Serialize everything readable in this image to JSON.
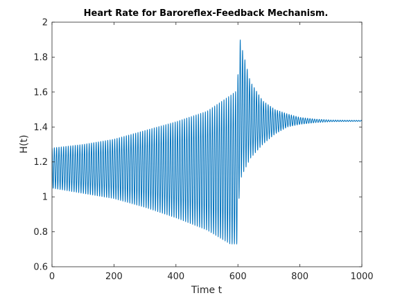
{
  "chart_data": {
    "type": "line",
    "title": "Heart Rate for Baroreflex-Feedback Mechanism.",
    "xlabel": "Time t",
    "ylabel": "H(t)",
    "xlim": [
      0,
      1000
    ],
    "ylim": [
      0.6,
      2
    ],
    "xticks": [
      0,
      200,
      400,
      600,
      800,
      1000
    ],
    "yticks": [
      0.6,
      0.8,
      1,
      1.2,
      1.4,
      1.6,
      1.8,
      2
    ],
    "xtick_labels": [
      "0",
      "200",
      "400",
      "600",
      "800",
      "1000"
    ],
    "ytick_labels": [
      "0.6",
      "0.8",
      "1",
      "1.2",
      "1.4",
      "1.6",
      "1.8",
      "2"
    ],
    "grid": false,
    "line_color": "#0072BD",
    "series": [
      {
        "oscillation_period": 7.5,
        "envelope": [
          {
            "t": 0,
            "min": 1.05,
            "max": 1.28
          },
          {
            "t": 100,
            "min": 1.02,
            "max": 1.3
          },
          {
            "t": 200,
            "min": 0.99,
            "max": 1.33
          },
          {
            "t": 300,
            "min": 0.94,
            "max": 1.38
          },
          {
            "t": 400,
            "min": 0.88,
            "max": 1.43
          },
          {
            "t": 500,
            "min": 0.81,
            "max": 1.49
          },
          {
            "t": 575,
            "min": 0.73,
            "max": 1.58
          },
          {
            "t": 598,
            "min": 0.73,
            "max": 1.61
          },
          {
            "t": 605,
            "min": 1.05,
            "max": 1.92
          },
          {
            "t": 612,
            "min": 1.12,
            "max": 1.86
          },
          {
            "t": 640,
            "min": 1.22,
            "max": 1.66
          },
          {
            "t": 680,
            "min": 1.3,
            "max": 1.55
          },
          {
            "t": 720,
            "min": 1.36,
            "max": 1.5
          },
          {
            "t": 760,
            "min": 1.4,
            "max": 1.475
          },
          {
            "t": 800,
            "min": 1.415,
            "max": 1.455
          },
          {
            "t": 850,
            "min": 1.425,
            "max": 1.445
          },
          {
            "t": 900,
            "min": 1.43,
            "max": 1.44
          },
          {
            "t": 1000,
            "min": 1.432,
            "max": 1.438
          }
        ]
      }
    ]
  }
}
